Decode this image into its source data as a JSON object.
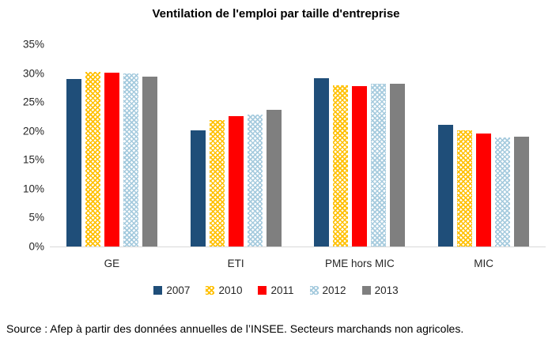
{
  "title": "Ventilation de l'emploi par taille d'entreprise",
  "source": "Source : Afep à partir des données annuelles de l’INSEE. Secteurs marchands non agricoles.",
  "colors": {
    "s2007": "#1F4E79",
    "s2010": "#FFC000",
    "s2011": "#FF0000",
    "s2012": "#A6CBDE",
    "s2013": "#7F7F7F",
    "axis_line": "#D9D9D9",
    "text": "#262626"
  },
  "chart_data": {
    "type": "bar",
    "title": "Ventilation de l'emploi par taille d'entreprise",
    "categories": [
      "GE",
      "ETI",
      "PME hors MIC",
      "MIC"
    ],
    "series": [
      {
        "name": "2007",
        "color": "#1F4E79",
        "pattern": "solid",
        "values": [
          29.0,
          20.1,
          29.1,
          21.1
        ]
      },
      {
        "name": "2010",
        "color": "#FFC000",
        "pattern": "crosshatch",
        "values": [
          30.2,
          21.9,
          27.9,
          20.1
        ]
      },
      {
        "name": "2011",
        "color": "#FF0000",
        "pattern": "solid",
        "values": [
          30.1,
          22.6,
          27.8,
          19.6
        ]
      },
      {
        "name": "2012",
        "color": "#A6CBDE",
        "pattern": "crosshatch",
        "values": [
          30.0,
          22.9,
          28.1,
          18.9
        ]
      },
      {
        "name": "2013",
        "color": "#7F7F7F",
        "pattern": "solid",
        "values": [
          29.4,
          23.6,
          28.2,
          19.0
        ]
      }
    ],
    "xlabel": "",
    "ylabel": "",
    "ylim": [
      0,
      35
    ],
    "ytick_step": 5,
    "yticks": [
      "35%",
      "30%",
      "25%",
      "20%",
      "15%",
      "10%",
      "5%",
      "0%"
    ],
    "grid": false,
    "legend_position": "bottom"
  }
}
